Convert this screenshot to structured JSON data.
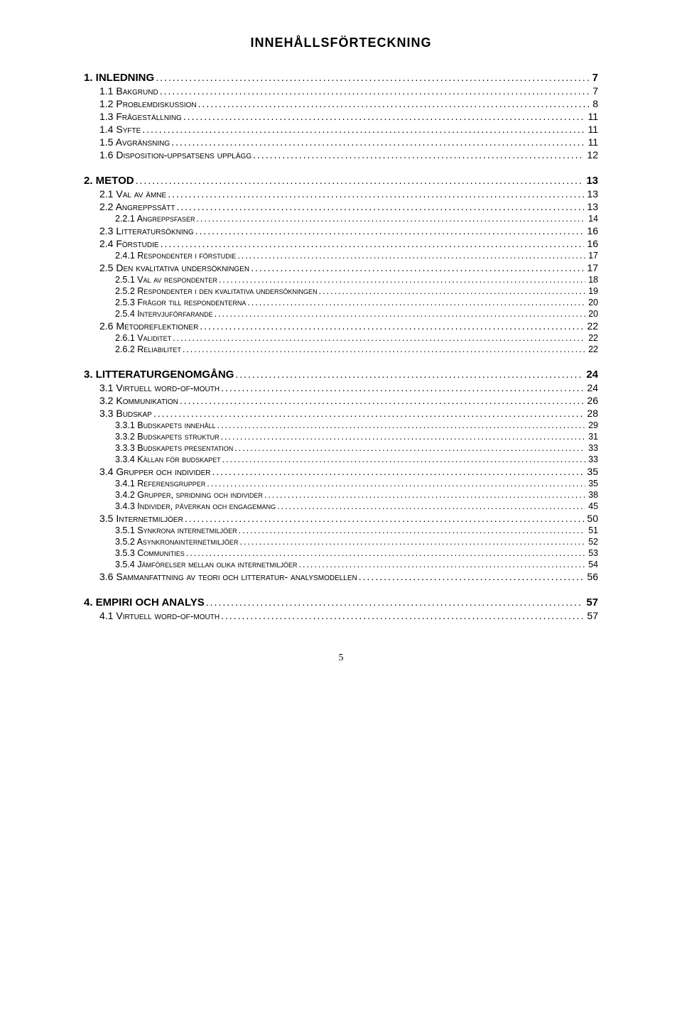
{
  "title": "INNEHÅLLSFÖRTECKNING",
  "page_number": "5",
  "colors": {
    "text": "#000000",
    "background": "#ffffff"
  },
  "entries": [
    {
      "level": 1,
      "label": "1. INLEDNING",
      "page": "7"
    },
    {
      "level": 2,
      "label": "1.1 Bakgrund",
      "page": "7"
    },
    {
      "level": 2,
      "label": "1.2 Problemdiskussion",
      "page": "8"
    },
    {
      "level": 2,
      "label": "1.3 Frågeställning",
      "page": "11"
    },
    {
      "level": 2,
      "label": "1.4 Syfte",
      "page": "11"
    },
    {
      "level": 2,
      "label": "1.5 Avgränsning",
      "page": "11"
    },
    {
      "level": 2,
      "label": "1.6 Disposition-uppsatsens upplägg",
      "page": "12"
    },
    {
      "level": 1,
      "label": "2. METOD",
      "page": "13"
    },
    {
      "level": 2,
      "label": "2.1 Val av ämne",
      "page": "13"
    },
    {
      "level": 2,
      "label": "2.2 Angreppssätt",
      "page": "13"
    },
    {
      "level": 3,
      "label": "2.2.1 Angreppsfaser",
      "page": "14"
    },
    {
      "level": 2,
      "label": "2.3 Litteratursökning",
      "page": "16"
    },
    {
      "level": 2,
      "label": "2.4 Förstudie",
      "page": "16"
    },
    {
      "level": 3,
      "label": "2.4.1 Respondenter i förstudie",
      "page": "17"
    },
    {
      "level": 2,
      "label": "2.5 Den kvalitativa undersökningen",
      "page": "17"
    },
    {
      "level": 3,
      "label": "2.5.1 Val av respondenter",
      "page": "18"
    },
    {
      "level": 3,
      "label": "2.5.2 Respondenter i den kvalitativa undersökningen",
      "page": "19"
    },
    {
      "level": 3,
      "label": "2.5.3 Frågor till respondenterna",
      "page": "20"
    },
    {
      "level": 3,
      "label": "2.5.4 Intervjuförfarande",
      "page": "20"
    },
    {
      "level": 2,
      "label": "2.6 Metodreflektioner",
      "page": "22"
    },
    {
      "level": 3,
      "label": "2.6.1 Validitet",
      "page": "22"
    },
    {
      "level": 3,
      "label": "2.6.2 Reliabilitet",
      "page": "22"
    },
    {
      "level": 1,
      "label": "3. LITTERATURGENOMGÅNG",
      "page": "24"
    },
    {
      "level": 2,
      "label": "3.1 Virtuell word-of-mouth",
      "page": "24"
    },
    {
      "level": 2,
      "label": "3.2 Kommunikation",
      "page": "26"
    },
    {
      "level": 2,
      "label": "3.3 Budskap",
      "page": "28"
    },
    {
      "level": 3,
      "label": "3.3.1 Budskapets innehåll",
      "page": "29"
    },
    {
      "level": 3,
      "label": "3.3.2 Budskapets struktur",
      "page": "31"
    },
    {
      "level": 3,
      "label": "3.3.3 Budskapets presentation",
      "page": "33"
    },
    {
      "level": 3,
      "label": "3.3.4 Källan för budskapet",
      "page": "33"
    },
    {
      "level": 2,
      "label": "3.4 Grupper och individer",
      "page": "35"
    },
    {
      "level": 3,
      "label": "3.4.1 Referensgrupper",
      "page": "35"
    },
    {
      "level": 3,
      "label": "3.4.2 Grupper, spridning och individer",
      "page": "38"
    },
    {
      "level": 3,
      "label": "3.4.3 Individer, påverkan och engagemang",
      "page": "45"
    },
    {
      "level": 2,
      "label": "3.5 Internetmiljöer",
      "page": "50"
    },
    {
      "level": 3,
      "label": "3.5.1 Synkrona internetmiljöer",
      "page": "51"
    },
    {
      "level": 3,
      "label": "3.5.2 Asynkronainternetmiljöer",
      "page": "52"
    },
    {
      "level": 3,
      "label": "3.5.3 Communities",
      "page": "53"
    },
    {
      "level": 3,
      "label": "3.5.4 Jämförelser mellan olika internetmiljöer",
      "page": "54"
    },
    {
      "level": 2,
      "label": "3.6 Sammanfattning av teori och litteratur- analysmodellen",
      "page": "56"
    },
    {
      "level": 1,
      "label": "4. EMPIRI OCH ANALYS",
      "page": "57"
    },
    {
      "level": 2,
      "label": "4.1 Virtuell word-of-mouth",
      "page": "57"
    }
  ]
}
